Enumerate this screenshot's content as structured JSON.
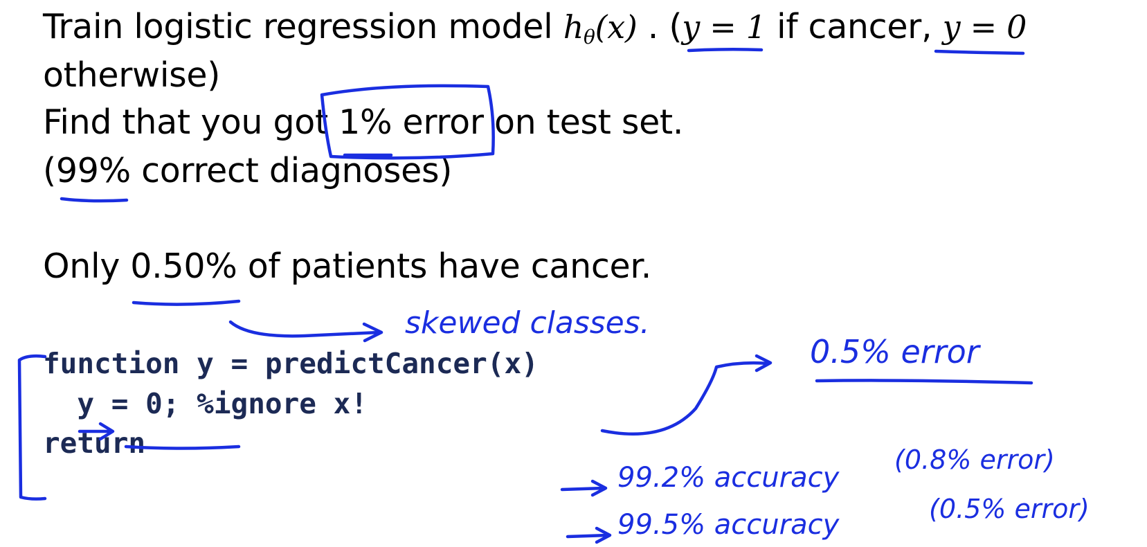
{
  "slide": {
    "line1": {
      "pre": "Train logistic regression model",
      "math_h": "h",
      "math_sub": "θ",
      "math_arg": "(x)",
      "mid": " . (",
      "y1": "y = 1",
      "if_cancer": " if cancer, ",
      "y0": "y = 0"
    },
    "line2": "otherwise)",
    "line3": {
      "pre": "Find that you got ",
      "highlight": "1% error",
      "post": " on test set."
    },
    "line4": "(99% correct diagnoses)",
    "line5": "Only 0.50% of patients have cancer."
  },
  "code": {
    "line1": "function y = predictCancer(x)",
    "line2": "  y = 0; %ignore x!",
    "line3": "return"
  },
  "annotations": {
    "skewed": "skewed classes.",
    "half_error": "0.5% error",
    "acc1": "99.2% accuracy",
    "err1": "(0.8% error)",
    "acc2": "99.5% accuracy",
    "err2": "(0.5% error)"
  },
  "ink_color": "#1a2ee0",
  "code_color": "#1c2a55"
}
